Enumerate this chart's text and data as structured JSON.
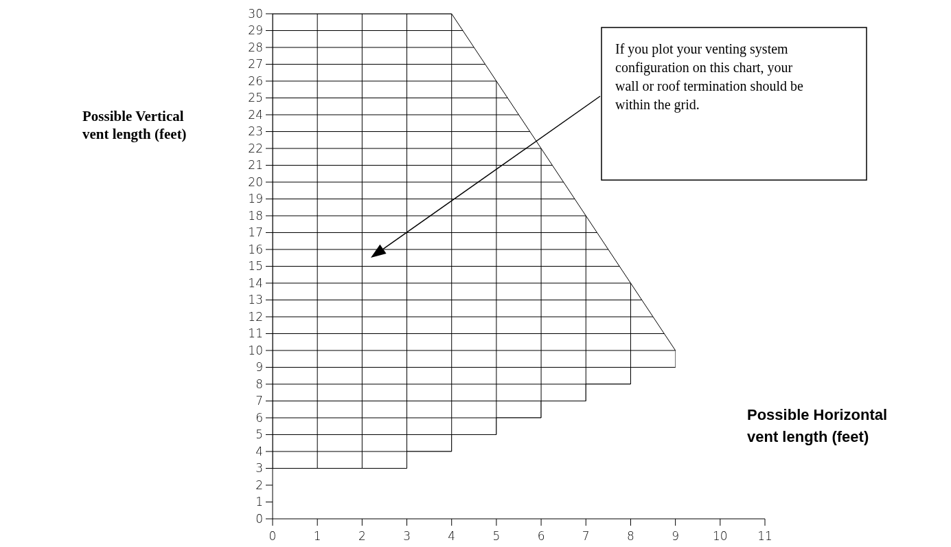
{
  "chart_data": {
    "type": "line",
    "ylabel": "Possible Vertical vent length (feet)",
    "xlabel": "Possible Horizontal vent length (feet)",
    "xlim": [
      0,
      11
    ],
    "xticks": [
      0,
      1,
      2,
      3,
      4,
      5,
      6,
      7,
      8,
      9,
      10,
      11
    ],
    "ylim": [
      0,
      30
    ],
    "yticks": [
      0,
      1,
      2,
      3,
      4,
      5,
      6,
      7,
      8,
      9,
      10,
      11,
      12,
      13,
      14,
      15,
      16,
      17,
      18,
      19,
      20,
      21,
      22,
      23,
      24,
      25,
      26,
      27,
      28,
      29,
      30
    ],
    "grid": true,
    "series": [
      {
        "color": "#000000",
        "x": [
          0,
          4,
          9
        ],
        "values": [
          30,
          30,
          10
        ]
      },
      {
        "type": "step",
        "color": "#000000",
        "x": [
          0,
          3,
          4,
          5,
          6,
          7,
          8,
          9
        ],
        "values": [
          3,
          4,
          5,
          6,
          7,
          8,
          9,
          9
        ]
      }
    ],
    "annotations": [
      "If you plot your venting system configuration on this chart, your wall or roof termination should be within the grid."
    ]
  }
}
